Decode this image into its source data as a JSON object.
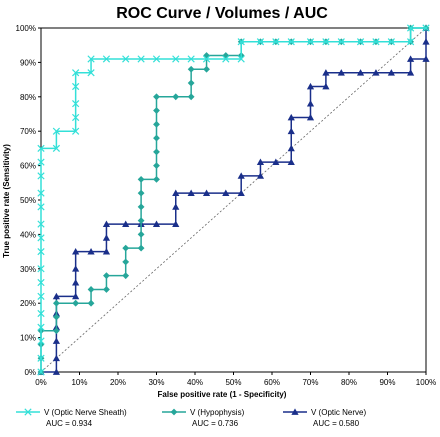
{
  "chart_data": {
    "type": "line",
    "title": "ROC Curve / Volumes / AUC",
    "xlabel": "False positive rate (1 - Specificity)",
    "ylabel": "True positive rate (Sensitivity)",
    "xlim": [
      0,
      100
    ],
    "ylim": [
      0,
      100
    ],
    "x_ticks": [
      "0%",
      "10%",
      "20%",
      "30%",
      "40%",
      "50%",
      "60%",
      "70%",
      "80%",
      "90%",
      "100%"
    ],
    "y_ticks": [
      "0%",
      "10%",
      "20%",
      "30%",
      "40%",
      "50%",
      "60%",
      "70%",
      "80%",
      "90%",
      "100%"
    ],
    "grid": false,
    "reference_line": "diagonal",
    "legend_position": "bottom",
    "series": [
      {
        "name": "V (Optic Nerve Sheath)",
        "auc_label": "AUC = 0.934",
        "color": "#33e0d8",
        "marker": "x",
        "points": [
          [
            0,
            0
          ],
          [
            0,
            4
          ],
          [
            0,
            9
          ],
          [
            0,
            13
          ],
          [
            0,
            17
          ],
          [
            0,
            22
          ],
          [
            0,
            26
          ],
          [
            0,
            30
          ],
          [
            0,
            35
          ],
          [
            0,
            39
          ],
          [
            0,
            43
          ],
          [
            0,
            48
          ],
          [
            0,
            52
          ],
          [
            0,
            57
          ],
          [
            0,
            61
          ],
          [
            0,
            65
          ],
          [
            4,
            65
          ],
          [
            4,
            70
          ],
          [
            9,
            70
          ],
          [
            9,
            74
          ],
          [
            9,
            78
          ],
          [
            9,
            83
          ],
          [
            9,
            87
          ],
          [
            13,
            87
          ],
          [
            13,
            91
          ],
          [
            17,
            91
          ],
          [
            22,
            91
          ],
          [
            26,
            91
          ],
          [
            30,
            91
          ],
          [
            35,
            91
          ],
          [
            39,
            91
          ],
          [
            43,
            91
          ],
          [
            48,
            91
          ],
          [
            52,
            91
          ],
          [
            52,
            96
          ],
          [
            57,
            96
          ],
          [
            61,
            96
          ],
          [
            65,
            96
          ],
          [
            70,
            96
          ],
          [
            74,
            96
          ],
          [
            78,
            96
          ],
          [
            83,
            96
          ],
          [
            87,
            96
          ],
          [
            91,
            96
          ],
          [
            96,
            96
          ],
          [
            96,
            100
          ],
          [
            100,
            100
          ]
        ]
      },
      {
        "name": "V (Hypophysis)",
        "auc_label": "AUC = 0.736",
        "color": "#26a69a",
        "marker": "diamond",
        "points": [
          [
            0,
            0
          ],
          [
            0,
            4
          ],
          [
            0,
            8
          ],
          [
            0,
            12
          ],
          [
            4,
            12
          ],
          [
            4,
            16
          ],
          [
            4,
            20
          ],
          [
            9,
            20
          ],
          [
            13,
            20
          ],
          [
            13,
            24
          ],
          [
            17,
            24
          ],
          [
            17,
            28
          ],
          [
            22,
            28
          ],
          [
            22,
            32
          ],
          [
            22,
            36
          ],
          [
            26,
            36
          ],
          [
            26,
            40
          ],
          [
            26,
            44
          ],
          [
            26,
            48
          ],
          [
            26,
            52
          ],
          [
            26,
            56
          ],
          [
            30,
            56
          ],
          [
            30,
            60
          ],
          [
            30,
            64
          ],
          [
            30,
            68
          ],
          [
            30,
            72
          ],
          [
            30,
            76
          ],
          [
            30,
            80
          ],
          [
            35,
            80
          ],
          [
            39,
            80
          ],
          [
            39,
            84
          ],
          [
            39,
            88
          ],
          [
            43,
            88
          ],
          [
            43,
            92
          ],
          [
            48,
            92
          ],
          [
            52,
            92
          ],
          [
            52,
            96
          ],
          [
            57,
            96
          ],
          [
            61,
            96
          ],
          [
            65,
            96
          ],
          [
            70,
            96
          ],
          [
            74,
            96
          ],
          [
            78,
            96
          ],
          [
            83,
            96
          ],
          [
            87,
            96
          ],
          [
            91,
            96
          ],
          [
            96,
            96
          ],
          [
            96,
            100
          ],
          [
            100,
            100
          ]
        ]
      },
      {
        "name": "V (Optic Nerve)",
        "auc_label": "AUC = 0.580",
        "color": "#1a2f8a",
        "marker": "triangle",
        "points": [
          [
            0,
            0
          ],
          [
            4,
            0
          ],
          [
            4,
            4
          ],
          [
            4,
            9
          ],
          [
            4,
            13
          ],
          [
            4,
            17
          ],
          [
            4,
            22
          ],
          [
            9,
            22
          ],
          [
            9,
            26
          ],
          [
            9,
            30
          ],
          [
            9,
            35
          ],
          [
            13,
            35
          ],
          [
            17,
            35
          ],
          [
            17,
            39
          ],
          [
            17,
            43
          ],
          [
            22,
            43
          ],
          [
            26,
            43
          ],
          [
            30,
            43
          ],
          [
            35,
            43
          ],
          [
            35,
            48
          ],
          [
            35,
            52
          ],
          [
            39,
            52
          ],
          [
            43,
            52
          ],
          [
            48,
            52
          ],
          [
            52,
            52
          ],
          [
            52,
            57
          ],
          [
            57,
            57
          ],
          [
            57,
            61
          ],
          [
            61,
            61
          ],
          [
            65,
            61
          ],
          [
            65,
            65
          ],
          [
            65,
            70
          ],
          [
            65,
            74
          ],
          [
            70,
            74
          ],
          [
            70,
            78
          ],
          [
            70,
            83
          ],
          [
            74,
            83
          ],
          [
            74,
            87
          ],
          [
            78,
            87
          ],
          [
            83,
            87
          ],
          [
            87,
            87
          ],
          [
            91,
            87
          ],
          [
            96,
            87
          ],
          [
            96,
            91
          ],
          [
            100,
            91
          ],
          [
            100,
            96
          ],
          [
            100,
            100
          ]
        ]
      }
    ]
  }
}
